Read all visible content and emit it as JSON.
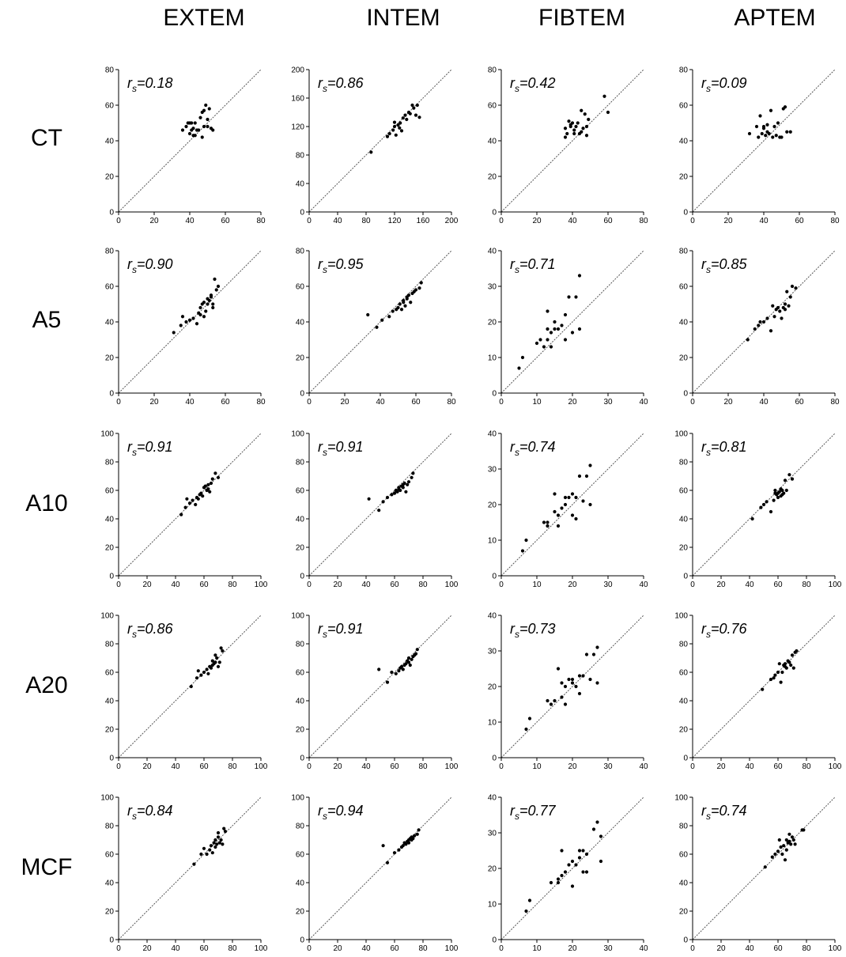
{
  "columns": [
    "EXTEM",
    "INTEM",
    "FIBTEM",
    "APTEM"
  ],
  "rows": [
    "CT",
    "A5",
    "A10",
    "A20",
    "MCF"
  ],
  "colors": {
    "points": "#000000",
    "identity_line": "#555555",
    "axis": "#000000"
  },
  "chart_data": [
    {
      "type": "scatter",
      "row": "CT",
      "column": "EXTEM",
      "annotation": "rs=0.18",
      "xlim": [
        0,
        80
      ],
      "ylim": [
        0,
        80
      ],
      "xticks": [
        0,
        20,
        40,
        60,
        80
      ],
      "yticks": [
        0,
        20,
        40,
        60,
        80
      ],
      "x": [
        36,
        38,
        39,
        40,
        40,
        41,
        41,
        42,
        42,
        43,
        43,
        44,
        45,
        46,
        47,
        47,
        48,
        48,
        49,
        50,
        50,
        51,
        52,
        53
      ],
      "y": [
        46,
        48,
        50,
        44,
        50,
        46,
        50,
        43,
        47,
        50,
        43,
        46,
        46,
        53,
        42,
        56,
        48,
        57,
        60,
        48,
        52,
        58,
        47,
        46
      ]
    },
    {
      "type": "scatter",
      "row": "CT",
      "column": "INTEM",
      "annotation": "rs=0.86",
      "xlim": [
        0,
        200
      ],
      "ylim": [
        0,
        200
      ],
      "xticks": [
        0,
        40,
        80,
        120,
        160,
        200
      ],
      "yticks": [
        0,
        40,
        80,
        120,
        160,
        200
      ],
      "x": [
        87,
        110,
        113,
        118,
        120,
        120,
        122,
        125,
        127,
        128,
        130,
        132,
        135,
        137,
        140,
        142,
        145,
        147,
        150,
        152,
        155
      ],
      "y": [
        84,
        106,
        110,
        115,
        120,
        126,
        108,
        122,
        118,
        125,
        114,
        132,
        136,
        130,
        140,
        138,
        150,
        146,
        136,
        150,
        133
      ]
    },
    {
      "type": "scatter",
      "row": "CT",
      "column": "FIBTEM",
      "annotation": "rs=0.42",
      "xlim": [
        0,
        80
      ],
      "ylim": [
        0,
        80
      ],
      "xticks": [
        0,
        20,
        40,
        60,
        80
      ],
      "yticks": [
        0,
        20,
        40,
        60,
        80
      ],
      "x": [
        36,
        36,
        37,
        38,
        39,
        39,
        40,
        41,
        41,
        42,
        43,
        44,
        45,
        45,
        46,
        47,
        48,
        48,
        49,
        58,
        60
      ],
      "y": [
        42,
        47,
        44,
        51,
        48,
        49,
        50,
        46,
        44,
        48,
        50,
        44,
        57,
        45,
        47,
        55,
        48,
        43,
        52,
        65,
        56
      ]
    },
    {
      "type": "scatter",
      "row": "CT",
      "column": "APTEM",
      "annotation": "rs=0.09",
      "xlim": [
        0,
        80
      ],
      "ylim": [
        0,
        80
      ],
      "xticks": [
        0,
        20,
        40,
        60,
        80
      ],
      "yticks": [
        0,
        20,
        40,
        60,
        80
      ],
      "x": [
        32,
        36,
        37,
        38,
        39,
        40,
        40,
        41,
        42,
        42,
        43,
        44,
        45,
        46,
        47,
        48,
        49,
        50,
        51,
        52,
        53,
        55
      ],
      "y": [
        44,
        48,
        42,
        54,
        44,
        48,
        47,
        43,
        49,
        45,
        44,
        57,
        42,
        48,
        43,
        50,
        42,
        42,
        58,
        59,
        45,
        45
      ]
    },
    {
      "type": "scatter",
      "row": "A5",
      "column": "EXTEM",
      "annotation": "rs=0.90",
      "xlim": [
        0,
        80
      ],
      "ylim": [
        0,
        80
      ],
      "xticks": [
        0,
        20,
        40,
        60,
        80
      ],
      "yticks": [
        0,
        20,
        40,
        60,
        80
      ],
      "x": [
        31,
        35,
        36,
        38,
        40,
        42,
        44,
        45,
        46,
        46,
        47,
        48,
        48,
        49,
        50,
        50,
        51,
        52,
        52,
        53,
        53,
        54,
        55,
        56
      ],
      "y": [
        34,
        38,
        43,
        40,
        41,
        42,
        39,
        45,
        44,
        48,
        50,
        43,
        51,
        46,
        50,
        53,
        52,
        54,
        55,
        48,
        50,
        64,
        58,
        60
      ]
    },
    {
      "type": "scatter",
      "row": "A5",
      "column": "INTEM",
      "annotation": "rs=0.95",
      "xlim": [
        0,
        80
      ],
      "ylim": [
        0,
        80
      ],
      "xticks": [
        0,
        20,
        40,
        60,
        80
      ],
      "yticks": [
        0,
        20,
        40,
        60,
        80
      ],
      "x": [
        33,
        38,
        41,
        45,
        47,
        49,
        50,
        51,
        52,
        53,
        53,
        54,
        55,
        55,
        56,
        57,
        58,
        59,
        60,
        62,
        63
      ],
      "y": [
        44,
        37,
        41,
        43,
        46,
        47,
        48,
        50,
        47,
        51,
        52,
        49,
        53,
        54,
        55,
        51,
        56,
        57,
        58,
        59,
        62
      ]
    },
    {
      "type": "scatter",
      "row": "A5",
      "column": "FIBTEM",
      "annotation": "rs=0.71",
      "xlim": [
        0,
        40
      ],
      "ylim": [
        0,
        40
      ],
      "xticks": [
        0,
        10,
        20,
        30,
        40
      ],
      "yticks": [
        0,
        10,
        20,
        30,
        40
      ],
      "x": [
        5,
        6,
        10,
        11,
        12,
        13,
        13,
        13,
        14,
        14,
        15,
        15,
        16,
        17,
        18,
        18,
        19,
        20,
        21,
        22,
        22
      ],
      "y": [
        7,
        10,
        14,
        15,
        13,
        18,
        15,
        23,
        17,
        13,
        20,
        18,
        18,
        19,
        22,
        15,
        27,
        17,
        27,
        33,
        18
      ]
    },
    {
      "type": "scatter",
      "row": "A5",
      "column": "APTEM",
      "annotation": "rs=0.85",
      "xlim": [
        0,
        80
      ],
      "ylim": [
        0,
        80
      ],
      "xticks": [
        0,
        20,
        40,
        60,
        80
      ],
      "yticks": [
        0,
        20,
        40,
        60,
        80
      ],
      "x": [
        31,
        35,
        37,
        38,
        40,
        42,
        44,
        45,
        46,
        47,
        48,
        49,
        50,
        51,
        52,
        52,
        53,
        54,
        55,
        56,
        58
      ],
      "y": [
        30,
        36,
        38,
        40,
        40,
        42,
        35,
        49,
        43,
        47,
        48,
        46,
        42,
        48,
        50,
        47,
        57,
        49,
        54,
        60,
        59
      ]
    },
    {
      "type": "scatter",
      "row": "A10",
      "column": "EXTEM",
      "annotation": "rs=0.91",
      "xlim": [
        0,
        100
      ],
      "ylim": [
        0,
        100
      ],
      "xticks": [
        0,
        20,
        40,
        60,
        80,
        100
      ],
      "yticks": [
        0,
        20,
        40,
        60,
        80,
        100
      ],
      "x": [
        44,
        47,
        48,
        50,
        52,
        54,
        55,
        56,
        57,
        58,
        59,
        60,
        61,
        62,
        63,
        63,
        64,
        65,
        66,
        68,
        70
      ],
      "y": [
        43,
        48,
        54,
        51,
        53,
        50,
        55,
        54,
        57,
        58,
        56,
        62,
        63,
        60,
        61,
        64,
        59,
        65,
        68,
        72,
        69
      ]
    },
    {
      "type": "scatter",
      "row": "A10",
      "column": "INTEM",
      "annotation": "rs=0.91",
      "xlim": [
        0,
        100
      ],
      "ylim": [
        0,
        100
      ],
      "xticks": [
        0,
        20,
        40,
        60,
        80,
        100
      ],
      "yticks": [
        0,
        20,
        40,
        60,
        80,
        100
      ],
      "x": [
        42,
        49,
        52,
        55,
        58,
        60,
        61,
        62,
        63,
        63,
        64,
        65,
        66,
        66,
        67,
        68,
        69,
        70,
        72,
        73
      ],
      "y": [
        54,
        46,
        52,
        55,
        57,
        58,
        60,
        59,
        62,
        61,
        60,
        63,
        62,
        64,
        65,
        59,
        64,
        66,
        69,
        72
      ]
    },
    {
      "type": "scatter",
      "row": "A10",
      "column": "FIBTEM",
      "annotation": "rs=0.74",
      "xlim": [
        0,
        40
      ],
      "ylim": [
        0,
        40
      ],
      "xticks": [
        0,
        10,
        20,
        30,
        40
      ],
      "yticks": [
        0,
        10,
        20,
        30,
        40
      ],
      "x": [
        6,
        7,
        12,
        13,
        13,
        15,
        15,
        16,
        16,
        17,
        18,
        18,
        19,
        20,
        20,
        21,
        21,
        22,
        23,
        24,
        25,
        25
      ],
      "y": [
        7,
        10,
        15,
        14,
        15,
        18,
        23,
        17,
        14,
        19,
        20,
        22,
        22,
        23,
        17,
        16,
        22,
        28,
        21,
        28,
        20,
        31
      ]
    },
    {
      "type": "scatter",
      "row": "A10",
      "column": "APTEM",
      "annotation": "rs=0.81",
      "xlim": [
        0,
        100
      ],
      "ylim": [
        0,
        100
      ],
      "xticks": [
        0,
        20,
        40,
        60,
        80,
        100
      ],
      "yticks": [
        0,
        20,
        40,
        60,
        80,
        100
      ],
      "x": [
        42,
        48,
        50,
        52,
        55,
        57,
        58,
        58,
        59,
        60,
        60,
        61,
        62,
        62,
        63,
        63,
        64,
        65,
        66,
        68,
        70
      ],
      "y": [
        40,
        48,
        50,
        52,
        45,
        53,
        58,
        60,
        57,
        55,
        58,
        59,
        56,
        61,
        57,
        60,
        58,
        67,
        60,
        71,
        68
      ]
    },
    {
      "type": "scatter",
      "row": "A20",
      "column": "EXTEM",
      "annotation": "rs=0.86",
      "xlim": [
        0,
        100
      ],
      "ylim": [
        0,
        100
      ],
      "xticks": [
        0,
        20,
        40,
        60,
        80,
        100
      ],
      "yticks": [
        0,
        20,
        40,
        60,
        80,
        100
      ],
      "x": [
        51,
        55,
        56,
        58,
        60,
        62,
        63,
        64,
        65,
        66,
        66,
        67,
        68,
        68,
        69,
        70,
        71,
        72,
        73
      ],
      "y": [
        50,
        56,
        61,
        58,
        60,
        62,
        59,
        64,
        63,
        68,
        65,
        66,
        72,
        67,
        70,
        64,
        67,
        77,
        75
      ]
    },
    {
      "type": "scatter",
      "row": "A20",
      "column": "INTEM",
      "annotation": "rs=0.91",
      "xlim": [
        0,
        100
      ],
      "ylim": [
        0,
        100
      ],
      "xticks": [
        0,
        20,
        40,
        60,
        80,
        100
      ],
      "yticks": [
        0,
        20,
        40,
        60,
        80,
        100
      ],
      "x": [
        49,
        55,
        58,
        61,
        63,
        64,
        65,
        66,
        67,
        68,
        69,
        70,
        70,
        71,
        72,
        73,
        74,
        75,
        76
      ],
      "y": [
        62,
        53,
        60,
        59,
        61,
        63,
        64,
        62,
        65,
        66,
        68,
        67,
        70,
        65,
        69,
        71,
        72,
        73,
        76
      ]
    },
    {
      "type": "scatter",
      "row": "A20",
      "column": "FIBTEM",
      "annotation": "rs=0.73",
      "xlim": [
        0,
        40
      ],
      "ylim": [
        0,
        40
      ],
      "xticks": [
        0,
        10,
        20,
        30,
        40
      ],
      "yticks": [
        0,
        10,
        20,
        30,
        40
      ],
      "x": [
        7,
        8,
        13,
        14,
        15,
        16,
        17,
        17,
        18,
        18,
        19,
        20,
        20,
        21,
        22,
        22,
        23,
        24,
        25,
        26,
        27,
        27
      ],
      "y": [
        8,
        11,
        16,
        15,
        16,
        25,
        17,
        21,
        20,
        15,
        22,
        21,
        22,
        20,
        23,
        18,
        23,
        29,
        22,
        29,
        31,
        21
      ]
    },
    {
      "type": "scatter",
      "row": "A20",
      "column": "APTEM",
      "annotation": "rs=0.76",
      "xlim": [
        0,
        100
      ],
      "ylim": [
        0,
        100
      ],
      "xticks": [
        0,
        20,
        40,
        60,
        80,
        100
      ],
      "yticks": [
        0,
        20,
        40,
        60,
        80,
        100
      ],
      "x": [
        49,
        55,
        57,
        58,
        60,
        61,
        62,
        63,
        64,
        65,
        65,
        66,
        67,
        68,
        69,
        70,
        71,
        72,
        73
      ],
      "y": [
        48,
        55,
        56,
        58,
        60,
        66,
        53,
        60,
        65,
        64,
        66,
        63,
        68,
        67,
        65,
        72,
        63,
        74,
        75
      ]
    },
    {
      "type": "scatter",
      "row": "MCF",
      "column": "EXTEM",
      "annotation": "rs=0.84",
      "xlim": [
        0,
        100
      ],
      "ylim": [
        0,
        100
      ],
      "xticks": [
        0,
        20,
        40,
        60,
        80,
        100
      ],
      "yticks": [
        0,
        20,
        40,
        60,
        80,
        100
      ],
      "x": [
        53,
        58,
        60,
        62,
        64,
        65,
        66,
        67,
        68,
        68,
        69,
        70,
        70,
        71,
        72,
        73,
        74,
        75
      ],
      "y": [
        53,
        60,
        64,
        60,
        63,
        66,
        61,
        68,
        65,
        70,
        67,
        72,
        75,
        68,
        70,
        67,
        78,
        76
      ]
    },
    {
      "type": "scatter",
      "row": "MCF",
      "column": "INTEM",
      "annotation": "rs=0.94",
      "xlim": [
        0,
        100
      ],
      "ylim": [
        0,
        100
      ],
      "xticks": [
        0,
        20,
        40,
        60,
        80,
        100
      ],
      "yticks": [
        0,
        20,
        40,
        60,
        80,
        100
      ],
      "x": [
        52,
        55,
        60,
        63,
        65,
        66,
        67,
        68,
        69,
        70,
        70,
        71,
        72,
        72,
        73,
        74,
        76,
        77
      ],
      "y": [
        66,
        54,
        61,
        63,
        65,
        66,
        68,
        67,
        69,
        70,
        68,
        71,
        72,
        70,
        71,
        73,
        74,
        77
      ]
    },
    {
      "type": "scatter",
      "row": "MCF",
      "column": "FIBTEM",
      "annotation": "rs=0.77",
      "xlim": [
        0,
        40
      ],
      "ylim": [
        0,
        40
      ],
      "xticks": [
        0,
        10,
        20,
        30,
        40
      ],
      "yticks": [
        0,
        10,
        20,
        30,
        40
      ],
      "x": [
        7,
        8,
        14,
        16,
        16,
        17,
        17,
        18,
        19,
        20,
        20,
        21,
        22,
        22,
        23,
        23,
        24,
        24,
        26,
        27,
        28,
        28
      ],
      "y": [
        8,
        11,
        16,
        16,
        17,
        25,
        18,
        19,
        21,
        15,
        22,
        21,
        23,
        25,
        19,
        25,
        24,
        19,
        31,
        33,
        22,
        29
      ]
    },
    {
      "type": "scatter",
      "row": "MCF",
      "column": "APTEM",
      "annotation": "rs=0.74",
      "xlim": [
        0,
        100
      ],
      "ylim": [
        0,
        100
      ],
      "xticks": [
        0,
        20,
        40,
        60,
        80,
        100
      ],
      "yticks": [
        0,
        20,
        40,
        60,
        80,
        100
      ],
      "x": [
        51,
        56,
        58,
        60,
        61,
        62,
        63,
        64,
        65,
        66,
        66,
        67,
        68,
        68,
        69,
        70,
        71,
        72,
        77,
        78
      ],
      "y": [
        51,
        58,
        60,
        62,
        70,
        65,
        60,
        66,
        56,
        63,
        70,
        68,
        69,
        74,
        67,
        72,
        70,
        67,
        77,
        77
      ]
    }
  ]
}
